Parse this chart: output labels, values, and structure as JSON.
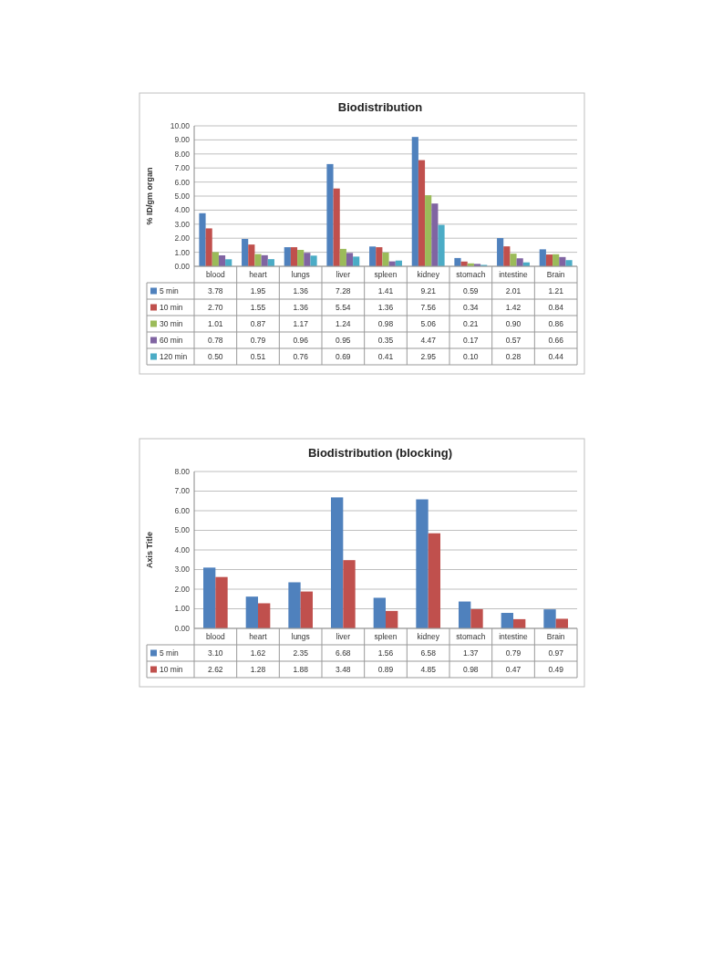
{
  "chart_data": [
    {
      "type": "bar",
      "title": "Biodistribution",
      "ylabel": "% ID/gm organ",
      "categories": [
        "blood",
        "heart",
        "lungs",
        "liver",
        "spleen",
        "kidney",
        "stomach",
        "intestine",
        "Brain"
      ],
      "series": [
        {
          "name": "5 min",
          "color": "#4f81bd",
          "values": [
            3.78,
            1.95,
            1.36,
            7.28,
            1.41,
            9.21,
            0.59,
            2.01,
            1.21
          ],
          "value_labels": [
            "3.78",
            "1.95",
            "1.36",
            "7.28",
            "1.41",
            "9.21",
            "0.59",
            "2.01",
            "1.21"
          ]
        },
        {
          "name": "10 min",
          "color": "#c0504d",
          "values": [
            2.7,
            1.55,
            1.36,
            5.54,
            1.36,
            7.56,
            0.34,
            1.42,
            0.84
          ],
          "value_labels": [
            "2.70",
            "1.55",
            "1.36",
            "5.54",
            "1.36",
            "7.56",
            "0.34",
            "1.42",
            "0.84"
          ]
        },
        {
          "name": "30 min",
          "color": "#9bbb59",
          "values": [
            1.01,
            0.87,
            1.17,
            1.24,
            0.98,
            5.06,
            0.21,
            0.9,
            0.86
          ],
          "value_labels": [
            "1.01",
            "0.87",
            "1.17",
            "1.24",
            "0.98",
            "5.06",
            "0.21",
            "0.90",
            "0.86"
          ]
        },
        {
          "name": "60 min",
          "color": "#8064a2",
          "values": [
            0.78,
            0.79,
            0.96,
            0.95,
            0.35,
            4.47,
            0.17,
            0.57,
            0.66
          ],
          "value_labels": [
            "0.78",
            "0.79",
            "0.96",
            "0.95",
            "0.35",
            "4.47",
            "0.17",
            "0.57",
            "0.66"
          ]
        },
        {
          "name": "120 min",
          "color": "#4bacc6",
          "values": [
            0.5,
            0.51,
            0.76,
            0.69,
            0.41,
            2.95,
            0.1,
            0.28,
            0.44
          ],
          "value_labels": [
            "0.50",
            "0.51",
            "0.76",
            "0.69",
            "0.41",
            "2.95",
            "0.10",
            "0.28",
            "0.44"
          ]
        }
      ],
      "ylim": [
        0,
        10
      ],
      "yticks": [
        {
          "value": 0,
          "label": "0.00"
        },
        {
          "value": 1,
          "label": "1.00"
        },
        {
          "value": 2,
          "label": "2.00"
        },
        {
          "value": 3,
          "label": "3.00"
        },
        {
          "value": 4,
          "label": "4.00"
        },
        {
          "value": 5,
          "label": "5.00"
        },
        {
          "value": 6,
          "label": "6.00"
        },
        {
          "value": 7,
          "label": "7.00"
        },
        {
          "value": 8,
          "label": "8.00"
        },
        {
          "value": 9,
          "label": "9.00"
        },
        {
          "value": 10,
          "label": "10.00"
        }
      ],
      "grid": "y",
      "legend": "bottom"
    },
    {
      "type": "bar",
      "title": "Biodistribution (blocking)",
      "ylabel": "Axis Title",
      "categories": [
        "blood",
        "heart",
        "lungs",
        "liver",
        "spleen",
        "kidney",
        "stomach",
        "intestine",
        "Brain"
      ],
      "series": [
        {
          "name": "5 min",
          "color": "#4f81bd",
          "values": [
            3.1,
            1.62,
            2.35,
            6.68,
            1.56,
            6.58,
            1.37,
            0.79,
            0.97
          ],
          "value_labels": [
            "3.10",
            "1.62",
            "2.35",
            "6.68",
            "1.56",
            "6.58",
            "1.37",
            "0.79",
            "0.97"
          ]
        },
        {
          "name": "10 min",
          "color": "#c0504d",
          "values": [
            2.62,
            1.28,
            1.88,
            3.48,
            0.89,
            4.85,
            0.98,
            0.47,
            0.49
          ],
          "value_labels": [
            "2.62",
            "1.28",
            "1.88",
            "3.48",
            "0.89",
            "4.85",
            "0.98",
            "0.47",
            "0.49"
          ]
        }
      ],
      "ylim": [
        0,
        8
      ],
      "yticks": [
        {
          "value": 0,
          "label": "0.00"
        },
        {
          "value": 1,
          "label": "1.00"
        },
        {
          "value": 2,
          "label": "2.00"
        },
        {
          "value": 3,
          "label": "3.00"
        },
        {
          "value": 4,
          "label": "4.00"
        },
        {
          "value": 5,
          "label": "5.00"
        },
        {
          "value": 6,
          "label": "6.00"
        },
        {
          "value": 7,
          "label": "7.00"
        },
        {
          "value": 8,
          "label": "8.00"
        }
      ],
      "grid": "y",
      "legend": "bottom"
    }
  ]
}
